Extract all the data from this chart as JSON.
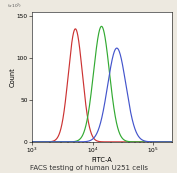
{
  "title": "FACS testing of human U251 cells",
  "xlabel": "FITC-A",
  "ylabel": "Count",
  "background_color": "#ede9e0",
  "plot_bg_color": "#ffffff",
  "red_peak": 5200,
  "red_sigma_log": 0.115,
  "red_height": 135,
  "green_peak": 14000,
  "green_sigma_log": 0.13,
  "green_height": 138,
  "blue_peak": 25000,
  "blue_sigma_log": 0.15,
  "blue_height": 112,
  "red_color": "#cc3333",
  "green_color": "#33aa33",
  "blue_color": "#4455cc",
  "xmin": 1000,
  "xmax": 200000,
  "ymin": 0,
  "ymax": 155,
  "yticks": [
    0,
    50,
    100,
    150
  ],
  "title_fontsize": 5.0,
  "axis_label_fontsize": 4.8,
  "tick_fontsize": 4.2,
  "linewidth": 0.85
}
